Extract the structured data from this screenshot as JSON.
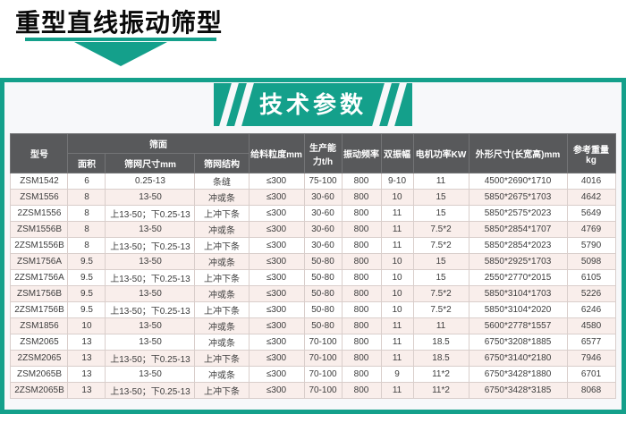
{
  "page": {
    "title": "重型直线振动筛型",
    "banner_label": "技术参数"
  },
  "colors": {
    "accent_teal": "#14a08b",
    "table_header_bg": "#58595b",
    "row_alt_bg": "#f9eeeb"
  },
  "table": {
    "header": {
      "model": "型号",
      "screen_surface_group": "筛面",
      "area": "面积",
      "mesh_size": "筛网尺寸mm",
      "mesh_structure": "筛网结构",
      "feed_size": "给料粒度mm",
      "capacity": "生产能力t/h",
      "frequency": "振动频率",
      "double_amplitude": "双振幅",
      "motor_power": "电机功率KW",
      "dimensions": "外形尺寸(长宽高)mm",
      "weight": "参考重量kg"
    },
    "rows": [
      [
        "ZSM1542",
        "6",
        "0.25-13",
        "条缝",
        "≤300",
        "75-100",
        "800",
        "9-10",
        "11",
        "4500*2690*1710",
        "4016"
      ],
      [
        "ZSM1556",
        "8",
        "13-50",
        "冲或条",
        "≤300",
        "30-60",
        "800",
        "10",
        "15",
        "5850*2675*1703",
        "4642"
      ],
      [
        "2ZSM1556",
        "8",
        "上13-50；下0.25-13",
        "上冲下条",
        "≤300",
        "30-60",
        "800",
        "11",
        "15",
        "5850*2575*2023",
        "5649"
      ],
      [
        "ZSM1556B",
        "8",
        "13-50",
        "冲或条",
        "≤300",
        "30-60",
        "800",
        "11",
        "7.5*2",
        "5850*2854*1707",
        "4769"
      ],
      [
        "2ZSM1556B",
        "8",
        "上13-50；下0.25-13",
        "上冲下条",
        "≤300",
        "30-60",
        "800",
        "11",
        "7.5*2",
        "5850*2854*2023",
        "5790"
      ],
      [
        "ZSM1756A",
        "9.5",
        "13-50",
        "冲或条",
        "≤300",
        "50-80",
        "800",
        "10",
        "15",
        "5850*2925*1703",
        "5098"
      ],
      [
        "2ZSM1756A",
        "9.5",
        "上13-50；下0.25-13",
        "上冲下条",
        "≤300",
        "50-80",
        "800",
        "10",
        "15",
        "2550*2770*2015",
        "6105"
      ],
      [
        "ZSM1756B",
        "9.5",
        "13-50",
        "冲或条",
        "≤300",
        "50-80",
        "800",
        "10",
        "7.5*2",
        "5850*3104*1703",
        "5226"
      ],
      [
        "2ZSM1756B",
        "9.5",
        "上13-50；下0.25-13",
        "上冲下条",
        "≤300",
        "50-80",
        "800",
        "10",
        "7.5*2",
        "5850*3104*2020",
        "6246"
      ],
      [
        "ZSM1856",
        "10",
        "13-50",
        "冲或条",
        "≤300",
        "50-80",
        "800",
        "11",
        "11",
        "5600*2778*1557",
        "4580"
      ],
      [
        "ZSM2065",
        "13",
        "13-50",
        "冲或条",
        "≤300",
        "70-100",
        "800",
        "11",
        "18.5",
        "6750*3208*1885",
        "6577"
      ],
      [
        "2ZSM2065",
        "13",
        "上13-50；下0.25-13",
        "上冲下条",
        "≤300",
        "70-100",
        "800",
        "11",
        "18.5",
        "6750*3140*2180",
        "7946"
      ],
      [
        "ZSM2065B",
        "13",
        "13-50",
        "冲或条",
        "≤300",
        "70-100",
        "800",
        "9",
        "11*2",
        "6750*3428*1880",
        "6701"
      ],
      [
        "2ZSM2065B",
        "13",
        "上13-50；下0.25-13",
        "上冲下条",
        "≤300",
        "70-100",
        "800",
        "11",
        "11*2",
        "6750*3428*3185",
        "8068"
      ]
    ]
  }
}
